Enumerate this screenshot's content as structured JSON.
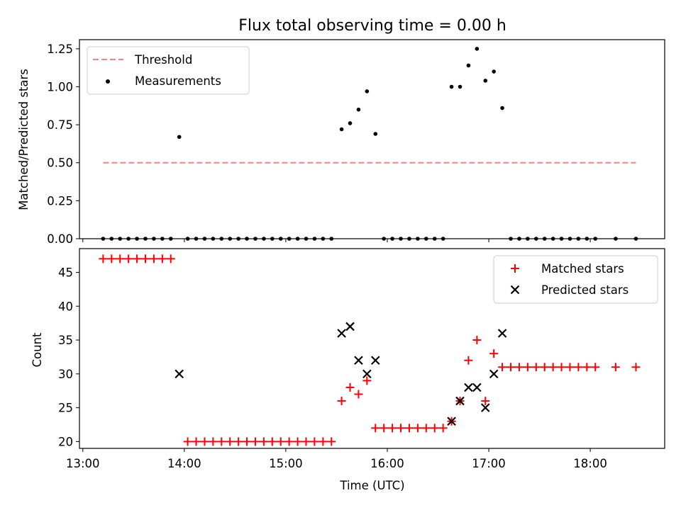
{
  "colors": {
    "threshold": "#ff7f7f",
    "measurements": "#000000",
    "matched": "#ff0000",
    "predicted": "#000000"
  },
  "chart_data": [
    {
      "type": "scatter",
      "title": "Flux total observing time = 0.00 h",
      "xlabel": "",
      "ylabel": "Matched/Predicted stars",
      "xlim": [
        "12:58",
        "18:44"
      ],
      "ylim": [
        0,
        1.31
      ],
      "yticks": [
        "0.00",
        "0.25",
        "0.50",
        "0.75",
        "1.00",
        "1.25"
      ],
      "grid": false,
      "legend_position": "top-left",
      "series": [
        {
          "name": "Threshold",
          "kind": "dashed-line",
          "x": [
            "13:12",
            "18:27"
          ],
          "y": [
            0.5,
            0.5
          ]
        },
        {
          "name": "Measurements",
          "kind": "points",
          "x": [
            "13:12",
            "13:17",
            "13:22",
            "13:27",
            "13:32",
            "13:37",
            "13:42",
            "13:47",
            "13:52",
            "13:57",
            "14:02",
            "14:07",
            "14:12",
            "14:17",
            "14:22",
            "14:27",
            "14:32",
            "14:37",
            "14:42",
            "14:47",
            "14:52",
            "14:57",
            "15:02",
            "15:07",
            "15:12",
            "15:17",
            "15:22",
            "15:27",
            "15:33",
            "15:38",
            "15:43",
            "15:48",
            "15:53",
            "15:58",
            "16:03",
            "16:08",
            "16:13",
            "16:18",
            "16:23",
            "16:28",
            "16:33",
            "16:38",
            "16:43",
            "16:48",
            "16:53",
            "16:58",
            "17:03",
            "17:08",
            "17:13",
            "17:18",
            "17:23",
            "17:28",
            "17:33",
            "17:38",
            "17:43",
            "17:48",
            "17:53",
            "17:58",
            "18:03",
            "18:15",
            "18:27"
          ],
          "y": [
            0,
            0,
            0,
            0,
            0,
            0,
            0,
            0,
            0,
            0.67,
            0,
            0,
            0,
            0,
            0,
            0,
            0,
            0,
            0,
            0,
            0,
            0,
            0,
            0,
            0,
            0,
            0,
            0,
            0.72,
            0.76,
            0.85,
            0.97,
            0.69,
            0,
            0,
            0,
            0,
            0,
            0,
            0,
            0,
            1.0,
            1.0,
            1.14,
            1.25,
            1.04,
            1.1,
            0.86,
            0,
            0,
            0,
            0,
            0,
            0,
            0,
            0,
            0,
            0,
            0,
            0,
            0
          ]
        }
      ]
    },
    {
      "type": "scatter",
      "title": "",
      "xlabel": "Time (UTC)",
      "ylabel": "Count",
      "xlim": [
        "12:58",
        "18:44"
      ],
      "ylim": [
        19,
        48.5
      ],
      "xticks": [
        "13:00",
        "14:00",
        "15:00",
        "16:00",
        "17:00",
        "18:00"
      ],
      "yticks": [
        "20",
        "25",
        "30",
        "35",
        "40",
        "45"
      ],
      "grid": false,
      "legend_position": "top-right",
      "series": [
        {
          "name": "Matched stars",
          "marker": "plus",
          "x": [
            "13:12",
            "13:17",
            "13:22",
            "13:27",
            "13:32",
            "13:37",
            "13:42",
            "13:47",
            "13:52",
            "14:02",
            "14:07",
            "14:12",
            "14:17",
            "14:22",
            "14:27",
            "14:32",
            "14:37",
            "14:42",
            "14:47",
            "14:52",
            "14:57",
            "15:02",
            "15:07",
            "15:12",
            "15:17",
            "15:22",
            "15:27",
            "15:33",
            "15:38",
            "15:43",
            "15:48",
            "15:53",
            "15:58",
            "16:03",
            "16:08",
            "16:13",
            "16:18",
            "16:23",
            "16:28",
            "16:33",
            "16:38",
            "16:43",
            "16:48",
            "16:53",
            "16:58",
            "17:03",
            "17:08",
            "17:13",
            "17:18",
            "17:23",
            "17:28",
            "17:33",
            "17:38",
            "17:43",
            "17:48",
            "17:53",
            "17:58",
            "18:03",
            "18:15",
            "18:27"
          ],
          "y": [
            47,
            47,
            47,
            47,
            47,
            47,
            47,
            47,
            47,
            20,
            20,
            20,
            20,
            20,
            20,
            20,
            20,
            20,
            20,
            20,
            20,
            20,
            20,
            20,
            20,
            20,
            20,
            26,
            28,
            27,
            29,
            22,
            22,
            22,
            22,
            22,
            22,
            22,
            22,
            22,
            23,
            26,
            32,
            35,
            26,
            33,
            31,
            31,
            31,
            31,
            31,
            31,
            31,
            31,
            31,
            31,
            31,
            31,
            31,
            31
          ]
        },
        {
          "name": "Predicted stars",
          "marker": "x",
          "x": [
            "13:57",
            "15:33",
            "15:38",
            "15:43",
            "15:48",
            "15:53",
            "16:38",
            "16:43",
            "16:48",
            "16:53",
            "16:58",
            "17:03",
            "17:08"
          ],
          "y": [
            30,
            36,
            37,
            32,
            30,
            32,
            23,
            26,
            28,
            28,
            25,
            30,
            36
          ]
        }
      ]
    }
  ]
}
